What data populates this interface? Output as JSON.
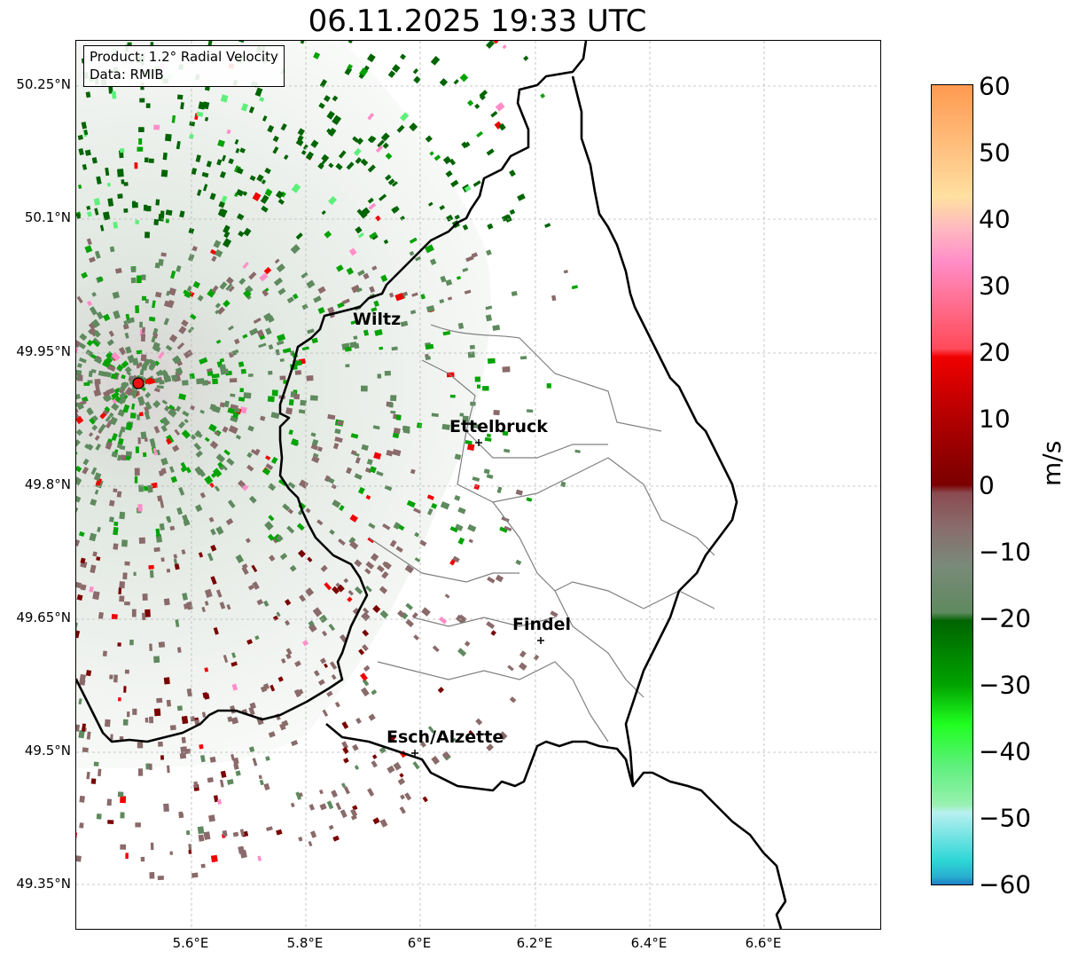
{
  "title": "06.11.2025 19:33 UTC",
  "info": {
    "product": "Product: 1.2° Radial Velocity",
    "source": "Data: RMIB"
  },
  "axes": {
    "y_ticks": [
      "50.25°N",
      "50.1°N",
      "49.95°N",
      "49.8°N",
      "49.65°N",
      "49.5°N",
      "49.35°N"
    ],
    "x_ticks": [
      "5.6°E",
      "5.8°E",
      "6°E",
      "6.2°E",
      "6.4°E",
      "6.6°E"
    ]
  },
  "cities": [
    {
      "name": "Wiltz"
    },
    {
      "name": "Ettelbruck"
    },
    {
      "name": "Findel"
    },
    {
      "name": "Esch/Alzette"
    }
  ],
  "colorbar": {
    "label": "m/s",
    "ticks": [
      "60",
      "50",
      "40",
      "30",
      "20",
      "10",
      "0",
      "−10",
      "−20",
      "−30",
      "−40",
      "−50",
      "−60"
    ],
    "range": [
      -60,
      60
    ]
  },
  "colors": {
    "neg_far": "#1f7fc4",
    "cyan": "#2ed6d6",
    "light_green": "#5cf07a",
    "green": "#00a300",
    "dark_green": "#006400",
    "grey_green": "#5e8a5e",
    "grey_red": "#8a6a6a",
    "dark_red": "#7a0000",
    "red": "#f00000",
    "pink": "#ff8ec8",
    "orange": "#ff9a50"
  }
}
